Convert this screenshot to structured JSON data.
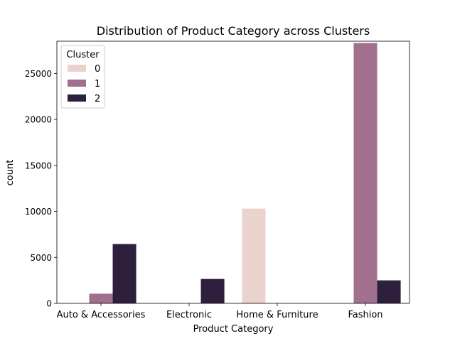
{
  "chart_data": {
    "type": "bar",
    "title": "Distribution of Product Category across Clusters",
    "xlabel": "Product Category",
    "ylabel": "count",
    "categories": [
      "Auto & Accessories",
      "Electronic",
      "Home & Furniture",
      "Fashion"
    ],
    "ylim": [
      0,
      28500
    ],
    "yticks": [
      0,
      5000,
      10000,
      15000,
      20000,
      25000
    ],
    "ytick_labels": [
      "0",
      "5000",
      "10000",
      "15000",
      "20000",
      "25000"
    ],
    "grid": false,
    "legend": {
      "title": "Cluster",
      "placement": "top-left"
    },
    "series": [
      {
        "name": "0",
        "color": "#ebd3cd",
        "values": [
          0,
          0,
          10300,
          0
        ]
      },
      {
        "name": "1",
        "color": "#a1708f",
        "values": [
          1050,
          0,
          0,
          28300
        ]
      },
      {
        "name": "2",
        "color": "#2e1f3c",
        "values": [
          6450,
          2650,
          0,
          2500
        ]
      }
    ]
  }
}
